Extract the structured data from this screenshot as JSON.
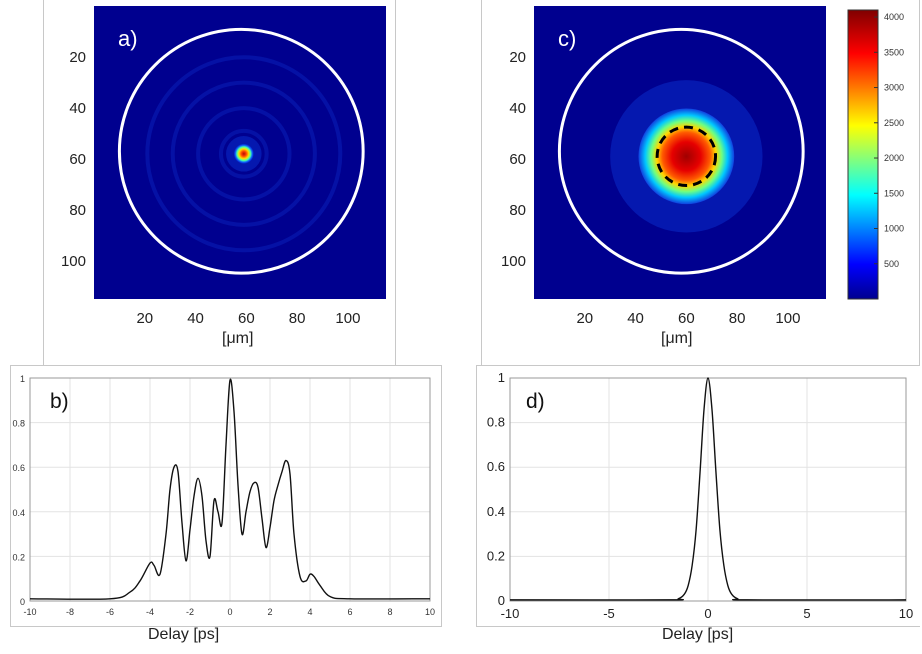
{
  "chart_data": [
    {
      "id": "a",
      "type": "heatmap",
      "panel_label": "a)",
      "xlabel": "[μm]",
      "x_ticks": [
        "20",
        "40",
        "60",
        "80",
        "100"
      ],
      "y_ticks": [
        "20",
        "40",
        "60",
        "80",
        "100"
      ],
      "xlim": [
        0,
        115
      ],
      "ylim": [
        115,
        0
      ],
      "spot_center": [
        59,
        58
      ],
      "spot_radius_um": 3,
      "white_circle": {
        "center": [
          58,
          57
        ],
        "radius": 48
      },
      "colormap": "jet"
    },
    {
      "id": "b",
      "type": "line",
      "panel_label": "b)",
      "xlabel": "Delay [ps]",
      "xlim": [
        -10,
        10
      ],
      "ylim": [
        0,
        1
      ],
      "x_ticks": [
        "-10",
        "-8",
        "-6",
        "-4",
        "-2",
        "0",
        "2",
        "4",
        "6",
        "8",
        "10"
      ],
      "y_ticks": [
        "0",
        "0.2",
        "0.4",
        "0.6",
        "0.8",
        "1"
      ],
      "grid": true,
      "series": [
        {
          "x": [
            -10,
            -6,
            -5,
            -4.5,
            -4,
            -3.8,
            -3.5,
            -3.2,
            -3,
            -2.8,
            -2.6,
            -2.4,
            -2.2,
            -2,
            -1.8,
            -1.6,
            -1.4,
            -1.2,
            -1,
            -0.8,
            -0.6,
            -0.4,
            -0.2,
            0,
            0.2,
            0.4,
            0.6,
            0.8,
            1,
            1.2,
            1.4,
            1.6,
            1.8,
            2,
            2.2,
            2.4,
            2.6,
            2.8,
            3,
            3.2,
            3.5,
            3.8,
            4,
            4.2,
            4.5,
            5,
            6,
            10
          ],
          "y": [
            0.01,
            0.01,
            0.04,
            0.09,
            0.17,
            0.16,
            0.12,
            0.3,
            0.5,
            0.6,
            0.58,
            0.35,
            0.18,
            0.32,
            0.47,
            0.55,
            0.47,
            0.27,
            0.2,
            0.45,
            0.4,
            0.35,
            0.7,
            0.99,
            0.85,
            0.52,
            0.3,
            0.4,
            0.49,
            0.53,
            0.51,
            0.37,
            0.24,
            0.33,
            0.45,
            0.52,
            0.58,
            0.63,
            0.57,
            0.3,
            0.11,
            0.09,
            0.12,
            0.11,
            0.07,
            0.02,
            0.01,
            0.01
          ]
        }
      ]
    },
    {
      "id": "c",
      "type": "heatmap",
      "panel_label": "c)",
      "xlabel": "[μm]",
      "x_ticks": [
        "20",
        "40",
        "60",
        "80",
        "100"
      ],
      "y_ticks": [
        "20",
        "40",
        "60",
        "80",
        "100"
      ],
      "xlim": [
        0,
        115
      ],
      "ylim": [
        115,
        0
      ],
      "spot_center": [
        60,
        59
      ],
      "spot_radius_um": 13,
      "white_circle": {
        "center": [
          58,
          57
        ],
        "radius": 48
      },
      "dashed_circle": {
        "center": [
          60,
          59
        ],
        "radius": 11.5
      },
      "colormap": "jet",
      "colorbar": {
        "min": 0,
        "max": 4100,
        "ticks": [
          "500",
          "1000",
          "1500",
          "2000",
          "2500",
          "3000",
          "3500",
          "4000"
        ]
      }
    },
    {
      "id": "d",
      "type": "line",
      "panel_label": "d)",
      "xlabel": "Delay [ps]",
      "xlim": [
        -10,
        10
      ],
      "ylim": [
        0,
        1
      ],
      "x_ticks": [
        "-10",
        "-5",
        "0",
        "5",
        "10"
      ],
      "y_ticks": [
        "0",
        "0.2",
        "0.4",
        "0.6",
        "0.8",
        "1"
      ],
      "grid": true,
      "series": [
        {
          "x": [
            -10,
            -2,
            -1.5,
            -1.2,
            -1,
            -0.8,
            -0.6,
            -0.4,
            -0.2,
            0,
            0.2,
            0.4,
            0.6,
            0.8,
            1,
            1.2,
            1.5,
            2,
            10
          ],
          "y": [
            0.005,
            0.005,
            0.01,
            0.03,
            0.07,
            0.16,
            0.32,
            0.58,
            0.86,
            1.0,
            0.86,
            0.58,
            0.32,
            0.16,
            0.07,
            0.03,
            0.01,
            0.005,
            0.005
          ]
        }
      ]
    }
  ]
}
